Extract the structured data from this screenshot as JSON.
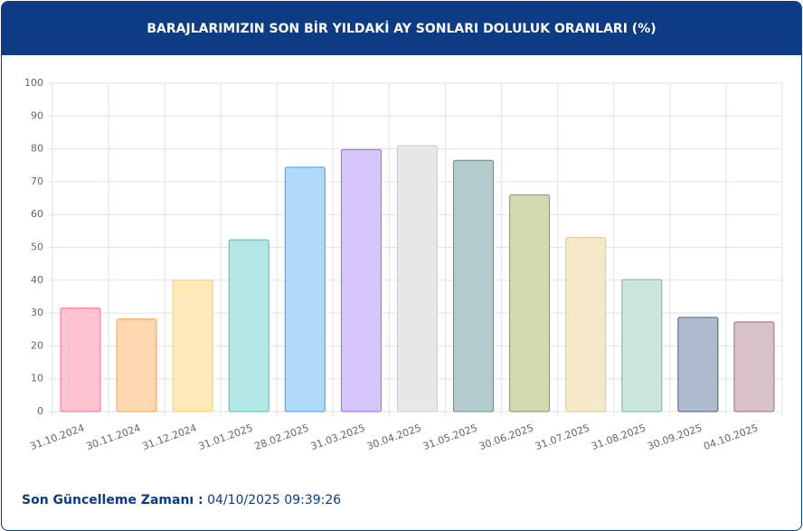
{
  "chart_data": {
    "type": "bar",
    "title": "BARAJLARIMIZIN SON BİR YILDAKİ AY SONLARI DOLULUK ORANLARI (%)",
    "categories": [
      "31.10.2024",
      "30.11.2024",
      "31.12.2024",
      "31.01.2025",
      "28.02.2025",
      "31.03.2025",
      "30.04.2025",
      "31.05.2025",
      "30.06.2025",
      "31.07.2025",
      "31.08.2025",
      "30.09.2025",
      "04.10.2025"
    ],
    "values": [
      31.5,
      28.2,
      40,
      52.3,
      74.4,
      79.8,
      81,
      76.5,
      66,
      53,
      40.2,
      28.7,
      27.3
    ],
    "colors": [
      "#ffc2d1",
      "#ffd8b1",
      "#ffe9b8",
      "#b5e6e6",
      "#afd9f8",
      "#d6c5fc",
      "#e6e7e9",
      "#b4cbce",
      "#d4d9b1",
      "#f6e9c9",
      "#cbe6df",
      "#afbccf",
      "#d8c1c9"
    ],
    "border_colors": [
      "#ff6b8d",
      "#ffa04a",
      "#ffcd56",
      "#4bbfbf",
      "#3aa3ea",
      "#9966ff",
      "#c9cbcf",
      "#5e8c92",
      "#8f943f",
      "#dcc48d",
      "#73b2a2",
      "#435b7b",
      "#9c6c7a"
    ],
    "ylim": [
      0,
      100
    ],
    "yticks": [
      0,
      10,
      20,
      30,
      40,
      50,
      60,
      70,
      80,
      90,
      100
    ],
    "grid": true
  },
  "footer": {
    "label": "Son Güncelleme Zamanı :",
    "value": "04/10/2025 09:39:26"
  }
}
